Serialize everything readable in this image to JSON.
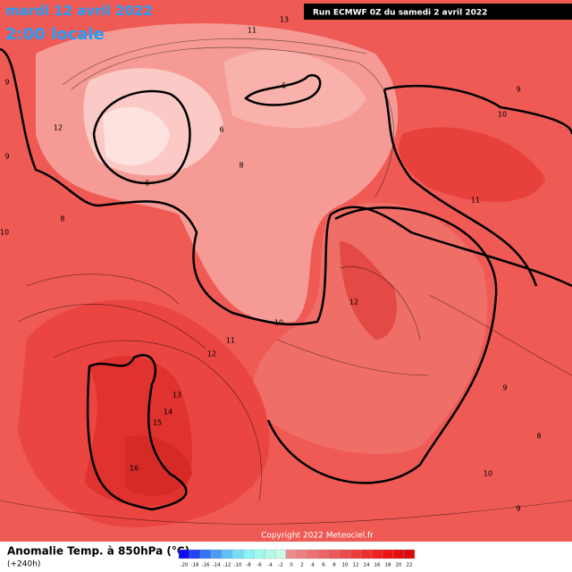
{
  "header": {
    "date": "mardi 12 avril 2022",
    "time": "2:00 locale",
    "run": "Run ECMWF 0Z du samedi 2 avril 2022"
  },
  "map": {
    "contour_labels": [
      13,
      11,
      9,
      12,
      9,
      10,
      6,
      5,
      5,
      8,
      9,
      8,
      10,
      11,
      12,
      10,
      11,
      12,
      13,
      14,
      15,
      16,
      9,
      8,
      10,
      9
    ],
    "copyright": "Copyright 2022 Meteociel.fr"
  },
  "footer": {
    "title": "Anomalie Temp. à 850hPa (°C)",
    "lead": "(+240h)",
    "colorbar": [
      -20,
      -18,
      -16,
      -14,
      -12,
      -10,
      -8,
      -6,
      -4,
      -2,
      0,
      2,
      4,
      6,
      8,
      10,
      12,
      14,
      16,
      18,
      20,
      22
    ]
  }
}
